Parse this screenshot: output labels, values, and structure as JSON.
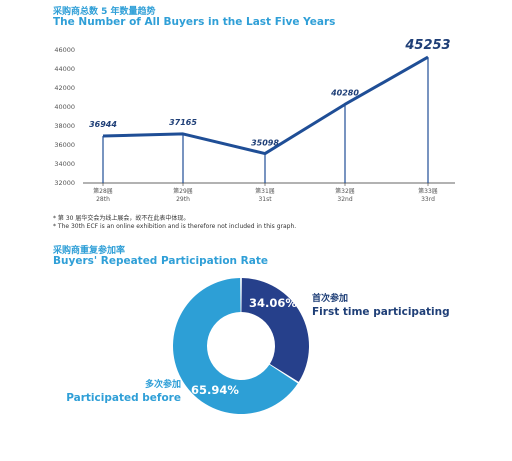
{
  "chart_data": [
    {
      "type": "line",
      "title_cn": "采购商总数 5 年数量趋势",
      "title": "The Number of All Buyers in the Last Five Years",
      "categories": [
        {
          "cn": "第28届",
          "en": "28th"
        },
        {
          "cn": "第29届",
          "en": "29th"
        },
        {
          "cn": "第31届",
          "en": "31st"
        },
        {
          "cn": "第32届",
          "en": "32nd"
        },
        {
          "cn": "第33届",
          "en": "33rd"
        }
      ],
      "values": [
        36944,
        37165,
        35098,
        40280,
        45253
      ],
      "value_labels": [
        "36944",
        "37165",
        "35098",
        "40280",
        "45253"
      ],
      "ylim": [
        32000,
        46000
      ],
      "yticks": [
        "32000",
        "34000",
        "36000",
        "38000",
        "40000",
        "42000",
        "44000",
        "46000"
      ],
      "grid": false,
      "color": "#1f4e96"
    },
    {
      "type": "pie",
      "title_cn": "采购商重复参加率",
      "title": "Buyers' Repeated Participation Rate",
      "slices": [
        {
          "label_cn": "首次参加",
          "label": "First time participating",
          "value": 34.06,
          "value_label": "34.06%",
          "color": "#26408b"
        },
        {
          "label_cn": "多次参加",
          "label": "Participated before",
          "value": 65.94,
          "value_label": "65.94%",
          "color": "#2d9fd6"
        }
      ],
      "donut": true
    }
  ],
  "notes": {
    "cn": "* 第 30 届华交会为线上展会，故不在此表中体现。",
    "en": "* The 30th ECF is an online exhibition and is therefore not included in this graph."
  }
}
